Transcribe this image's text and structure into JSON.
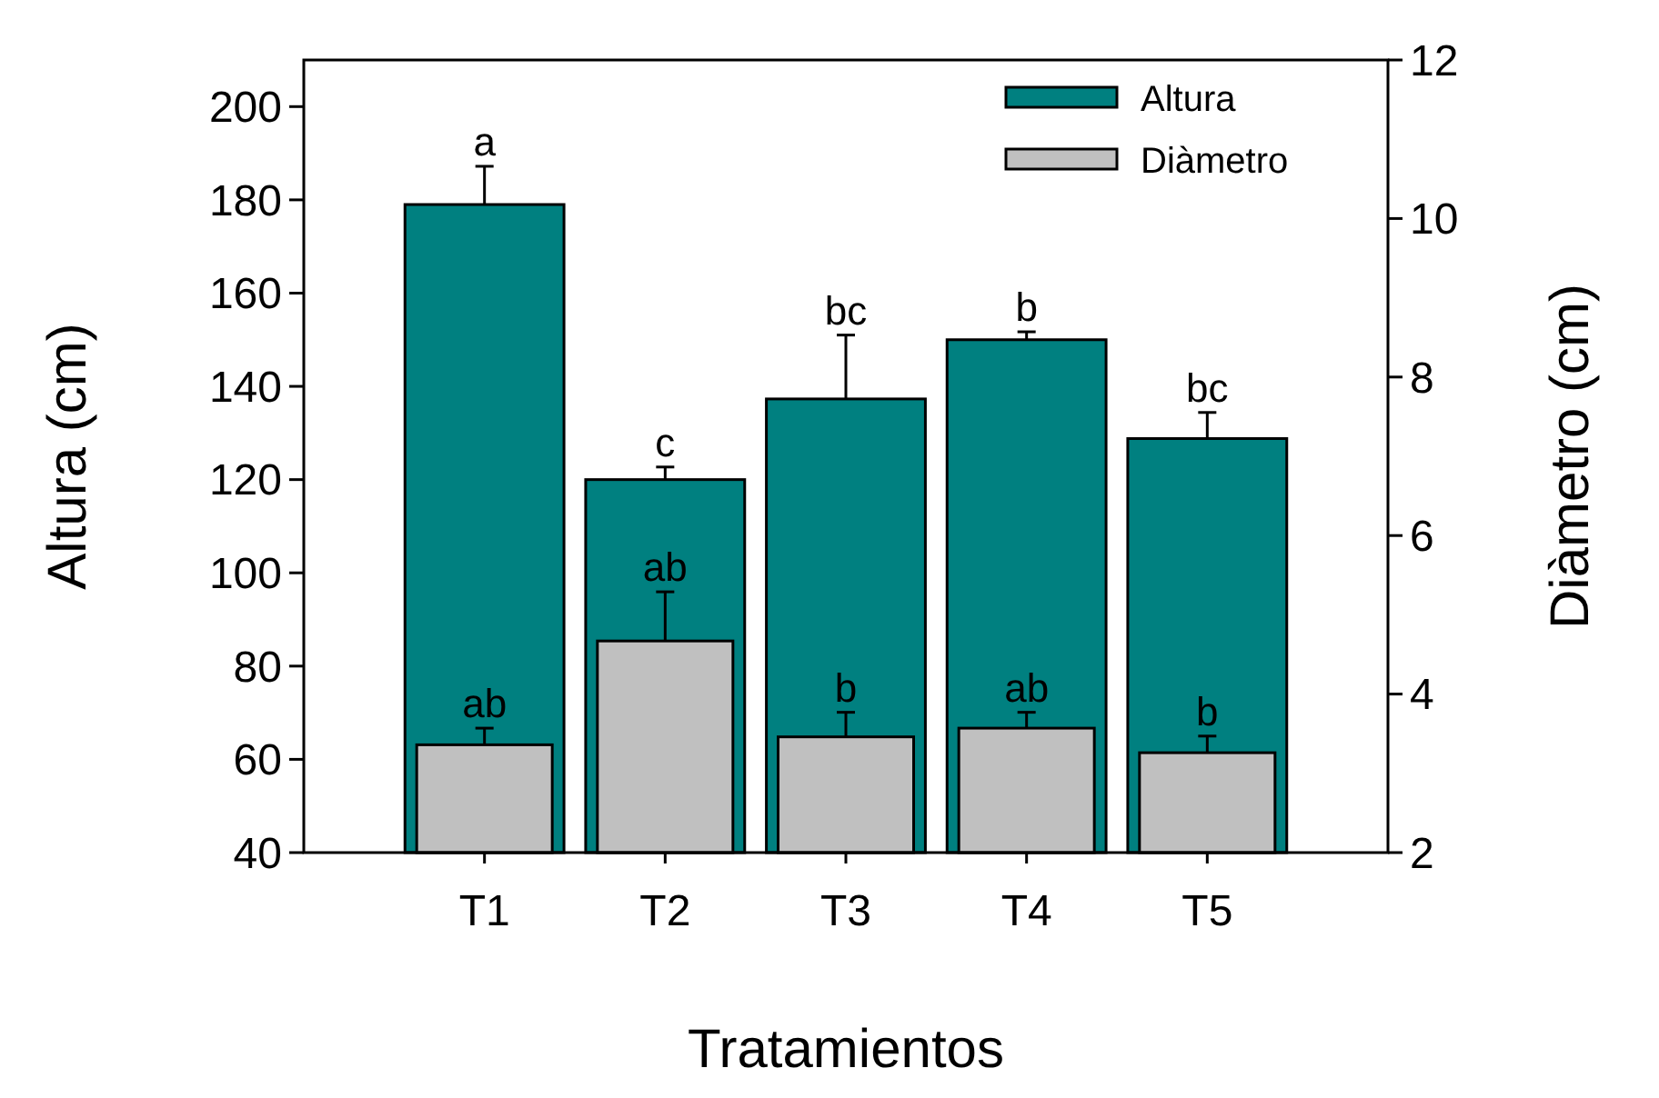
{
  "chart_data": {
    "type": "bar",
    "xlabel": "Tratamientos",
    "ylabel": "Altura (cm)",
    "y2label": "Diàmetro (cm)",
    "categories": [
      "T1",
      "T2",
      "T3",
      "T4",
      "T5"
    ],
    "series": [
      {
        "name": "Altura",
        "color": "#008080",
        "values": [
          179,
          120,
          137.3,
          150,
          128.8
        ],
        "errors": [
          8.2,
          2.7,
          13.7,
          1.7,
          5.6
        ],
        "value_labels": [
          "a",
          "c",
          "bc",
          "b",
          "bc"
        ]
      },
      {
        "name": "Diàmetro",
        "color": "#c0c0c0",
        "axis": "y2",
        "values": [
          3.36,
          4.67,
          3.46,
          3.57,
          3.26
        ],
        "errors": [
          0.21,
          0.62,
          0.31,
          0.2,
          0.21
        ],
        "value_labels": [
          "ab",
          "ab",
          "b",
          "ab",
          "b"
        ]
      }
    ],
    "ylim": [
      40,
      210
    ],
    "yticks": [
      40,
      60,
      80,
      100,
      120,
      140,
      160,
      180,
      200
    ],
    "y2lim": [
      2,
      12
    ],
    "y2ticks": [
      2,
      4,
      6,
      8,
      10,
      12
    ],
    "legend": "top right",
    "grid": false
  }
}
